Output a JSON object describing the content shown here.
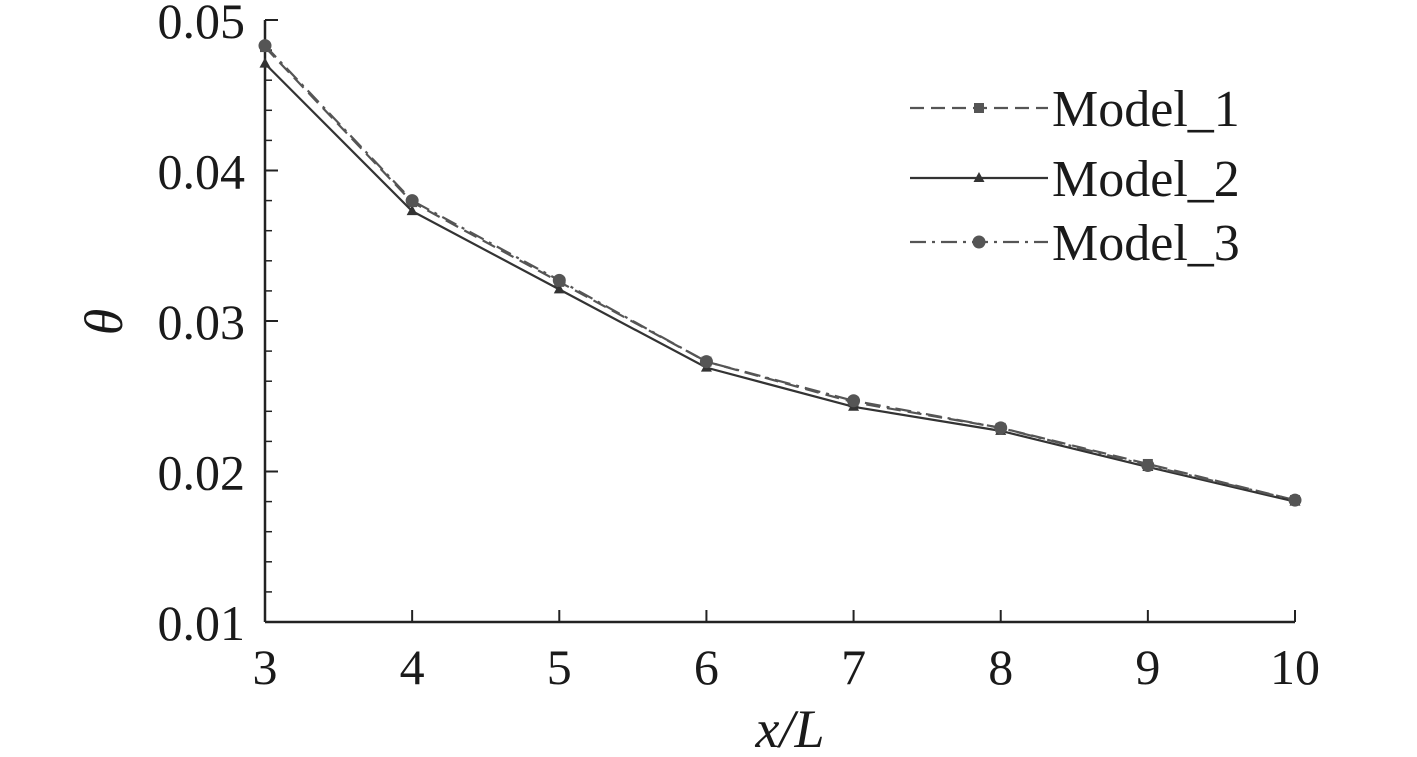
{
  "chart_data": {
    "type": "line",
    "xlabel": "x/L",
    "ylabel": "θ",
    "xlim": [
      3,
      10
    ],
    "ylim": [
      0.01,
      0.05
    ],
    "x": [
      3,
      4,
      5,
      6,
      7,
      8,
      9,
      10
    ],
    "x_ticks": [
      "3",
      "4",
      "5",
      "6",
      "7",
      "8",
      "9",
      "10"
    ],
    "y_ticks": [
      0.01,
      0.02,
      0.03,
      0.04,
      0.05
    ],
    "y_tick_labels": [
      "0.01",
      "0.02",
      "0.03",
      "0.04",
      "0.05"
    ],
    "y_minor_step": 0.002,
    "grid": false,
    "legend": "top-right",
    "series": [
      {
        "name": "Model_1",
        "line": "dashed",
        "marker": "square",
        "color": "#555555",
        "values": [
          0.0482,
          0.0379,
          0.0326,
          0.0273,
          0.0246,
          0.0229,
          0.0205,
          0.0181
        ]
      },
      {
        "name": "Model_2",
        "line": "solid",
        "marker": "triangle",
        "color": "#333333",
        "values": [
          0.0471,
          0.0373,
          0.0321,
          0.0269,
          0.0243,
          0.0227,
          0.0203,
          0.018
        ]
      },
      {
        "name": "Model_3",
        "line": "dashdot",
        "marker": "circle",
        "color": "#555555",
        "values": [
          0.0483,
          0.038,
          0.0327,
          0.0273,
          0.0247,
          0.0229,
          0.0204,
          0.0181
        ]
      }
    ]
  }
}
